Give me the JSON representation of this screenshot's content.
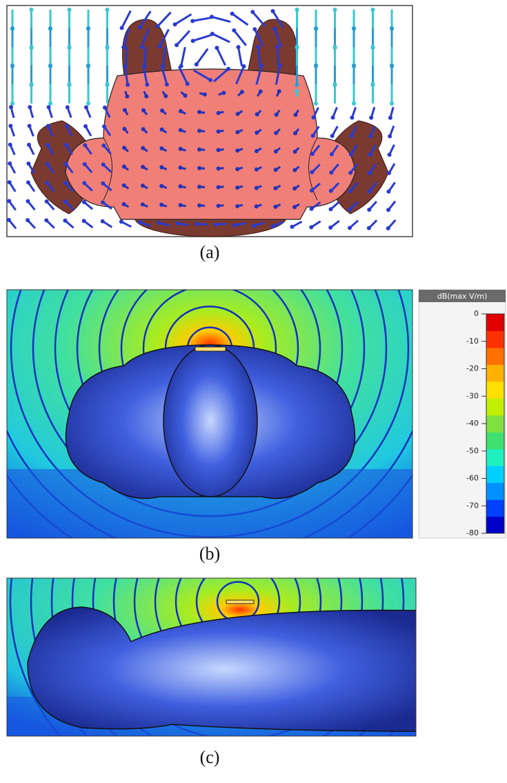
{
  "panels": [
    {
      "caption": "(a)"
    },
    {
      "caption": "(b)"
    },
    {
      "caption": "(c)"
    }
  ],
  "colorbar": {
    "title": "dB(max V/m)",
    "range": [
      -80,
      0
    ],
    "ticks": [
      0,
      -10,
      -20,
      -30,
      -40,
      -50,
      -60,
      -70,
      -80
    ]
  }
}
